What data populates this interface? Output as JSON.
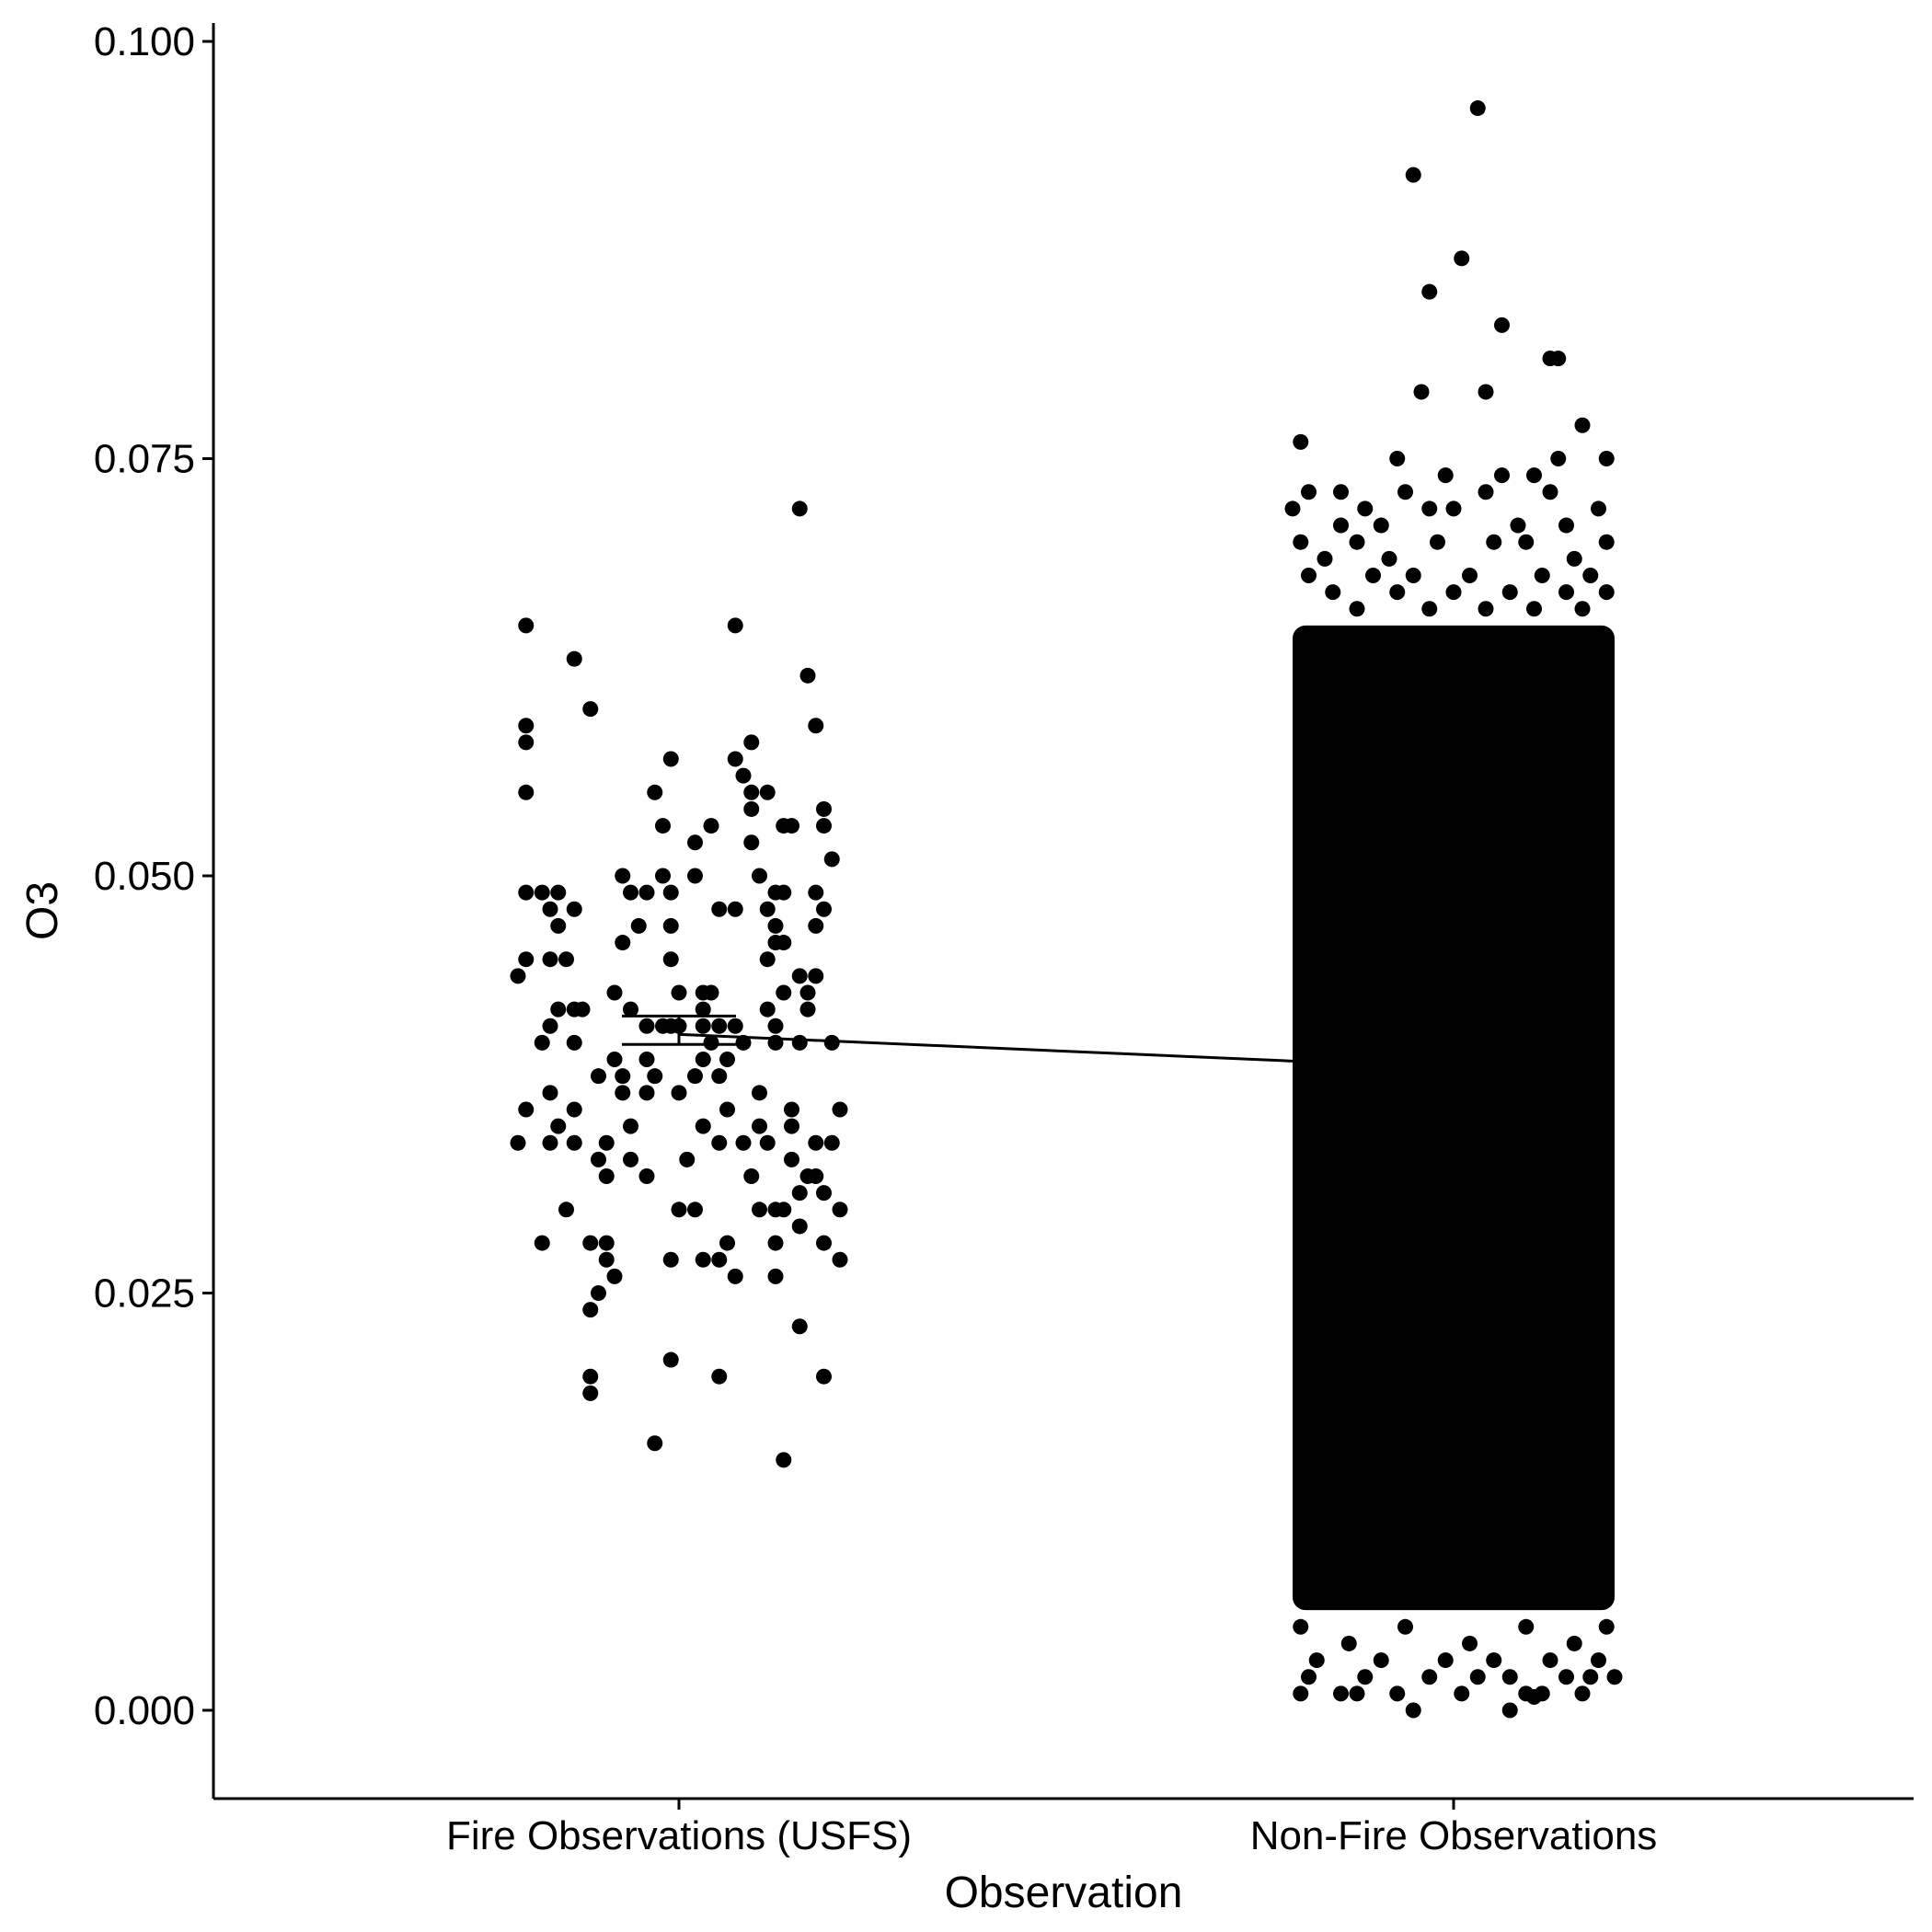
{
  "chart_data": {
    "type": "scatter",
    "title": "",
    "xlabel": "Observation",
    "ylabel": "O3",
    "categories": [
      "Fire Observations (USFS)",
      "Non-Fire Observations"
    ],
    "ylim": [
      -0.003,
      0.101
    ],
    "yticks": [
      "0.000",
      "0.025",
      "0.050",
      "0.075",
      "0.100"
    ],
    "grid": false,
    "legend": "none",
    "colors": {
      "points": "#000000",
      "background": "#ffffff"
    },
    "mean_line": {
      "from": [
        0,
        0.0405
      ],
      "to": [
        1,
        0.0389
      ]
    },
    "error_bar": {
      "category": 0,
      "mean": 0.0405,
      "low": 0.0399,
      "high": 0.0416
    },
    "series": [
      {
        "category": "Fire Observations (USFS)",
        "points": [
          [
            -0.19,
            0.065
          ],
          [
            -0.13,
            0.063
          ],
          [
            -0.11,
            0.06
          ],
          [
            0.07,
            0.065
          ],
          [
            0.16,
            0.062
          ],
          [
            -0.19,
            0.059
          ],
          [
            -0.19,
            0.058
          ],
          [
            -0.19,
            0.055
          ],
          [
            0.17,
            0.059
          ],
          [
            -0.03,
            0.055
          ],
          [
            0.07,
            0.057
          ],
          [
            0.09,
            0.058
          ],
          [
            0.08,
            0.056
          ],
          [
            -0.01,
            0.057
          ],
          [
            0.09,
            0.055
          ],
          [
            0.11,
            0.055
          ],
          [
            0.09,
            0.054
          ],
          [
            0.14,
            0.053
          ],
          [
            0.13,
            0.053
          ],
          [
            0.18,
            0.054
          ],
          [
            0.18,
            0.053
          ],
          [
            -0.02,
            0.053
          ],
          [
            0.04,
            0.053
          ],
          [
            0.02,
            0.052
          ],
          [
            0.09,
            0.052
          ],
          [
            0.19,
            0.051
          ],
          [
            -0.07,
            0.05
          ],
          [
            -0.02,
            0.05
          ],
          [
            0.02,
            0.05
          ],
          [
            0.1,
            0.05
          ],
          [
            -0.19,
            0.049
          ],
          [
            -0.17,
            0.049
          ],
          [
            -0.15,
            0.049
          ],
          [
            -0.06,
            0.049
          ],
          [
            -0.04,
            0.049
          ],
          [
            -0.01,
            0.049
          ],
          [
            0.12,
            0.049
          ],
          [
            0.13,
            0.049
          ],
          [
            0.17,
            0.049
          ],
          [
            -0.16,
            0.048
          ],
          [
            -0.13,
            0.048
          ],
          [
            0.05,
            0.048
          ],
          [
            0.07,
            0.048
          ],
          [
            0.18,
            0.048
          ],
          [
            0.11,
            0.048
          ],
          [
            -0.15,
            0.047
          ],
          [
            -0.05,
            0.047
          ],
          [
            -0.01,
            0.047
          ],
          [
            0.12,
            0.047
          ],
          [
            0.17,
            0.047
          ],
          [
            -0.07,
            0.046
          ],
          [
            0.12,
            0.046
          ],
          [
            0.13,
            0.046
          ],
          [
            -0.19,
            0.045
          ],
          [
            -0.16,
            0.045
          ],
          [
            -0.14,
            0.045
          ],
          [
            -0.01,
            0.045
          ],
          [
            0.11,
            0.045
          ],
          [
            -0.2,
            0.044
          ],
          [
            0.15,
            0.044
          ],
          [
            0.17,
            0.044
          ],
          [
            -0.08,
            0.043
          ],
          [
            0.0,
            0.043
          ],
          [
            0.03,
            0.043
          ],
          [
            0.04,
            0.043
          ],
          [
            0.13,
            0.043
          ],
          [
            0.16,
            0.043
          ],
          [
            -0.15,
            0.042
          ],
          [
            -0.13,
            0.042
          ],
          [
            -0.12,
            0.042
          ],
          [
            -0.06,
            0.042
          ],
          [
            0.03,
            0.042
          ],
          [
            0.11,
            0.042
          ],
          [
            0.16,
            0.042
          ],
          [
            -0.16,
            0.041
          ],
          [
            -0.04,
            0.041
          ],
          [
            -0.02,
            0.041
          ],
          [
            -0.01,
            0.041
          ],
          [
            0.0,
            0.041
          ],
          [
            0.03,
            0.041
          ],
          [
            0.05,
            0.041
          ],
          [
            0.07,
            0.041
          ],
          [
            0.12,
            0.041
          ],
          [
            -0.17,
            0.04
          ],
          [
            -0.13,
            0.04
          ],
          [
            0.04,
            0.04
          ],
          [
            0.08,
            0.04
          ],
          [
            0.12,
            0.04
          ],
          [
            0.15,
            0.04
          ],
          [
            0.19,
            0.04
          ],
          [
            -0.08,
            0.039
          ],
          [
            -0.04,
            0.039
          ],
          [
            0.03,
            0.039
          ],
          [
            0.06,
            0.039
          ],
          [
            -0.1,
            0.038
          ],
          [
            -0.07,
            0.038
          ],
          [
            -0.03,
            0.038
          ],
          [
            0.02,
            0.038
          ],
          [
            0.05,
            0.038
          ],
          [
            -0.16,
            0.037
          ],
          [
            -0.07,
            0.037
          ],
          [
            -0.04,
            0.037
          ],
          [
            0.0,
            0.037
          ],
          [
            0.1,
            0.037
          ],
          [
            -0.19,
            0.036
          ],
          [
            -0.13,
            0.036
          ],
          [
            0.06,
            0.036
          ],
          [
            0.14,
            0.036
          ],
          [
            0.2,
            0.036
          ],
          [
            -0.15,
            0.035
          ],
          [
            -0.06,
            0.035
          ],
          [
            0.03,
            0.035
          ],
          [
            0.1,
            0.035
          ],
          [
            0.14,
            0.035
          ],
          [
            -0.2,
            0.034
          ],
          [
            -0.16,
            0.034
          ],
          [
            -0.13,
            0.034
          ],
          [
            -0.09,
            0.034
          ],
          [
            0.05,
            0.034
          ],
          [
            0.08,
            0.034
          ],
          [
            0.11,
            0.034
          ],
          [
            0.17,
            0.034
          ],
          [
            0.19,
            0.034
          ],
          [
            -0.1,
            0.033
          ],
          [
            -0.06,
            0.033
          ],
          [
            0.01,
            0.033
          ],
          [
            0.14,
            0.033
          ],
          [
            -0.09,
            0.032
          ],
          [
            -0.04,
            0.032
          ],
          [
            0.09,
            0.032
          ],
          [
            0.16,
            0.032
          ],
          [
            0.17,
            0.032
          ],
          [
            0.15,
            0.031
          ],
          [
            0.18,
            0.031
          ],
          [
            -0.14,
            0.03
          ],
          [
            0.0,
            0.03
          ],
          [
            0.02,
            0.03
          ],
          [
            0.1,
            0.03
          ],
          [
            0.12,
            0.03
          ],
          [
            0.13,
            0.03
          ],
          [
            0.2,
            0.03
          ],
          [
            0.15,
            0.029
          ],
          [
            -0.17,
            0.028
          ],
          [
            -0.11,
            0.028
          ],
          [
            -0.09,
            0.028
          ],
          [
            0.06,
            0.028
          ],
          [
            0.12,
            0.028
          ],
          [
            0.18,
            0.028
          ],
          [
            -0.09,
            0.027
          ],
          [
            -0.01,
            0.027
          ],
          [
            0.03,
            0.027
          ],
          [
            0.05,
            0.027
          ],
          [
            0.2,
            0.027
          ],
          [
            -0.08,
            0.026
          ],
          [
            0.07,
            0.026
          ],
          [
            0.12,
            0.026
          ],
          [
            -0.1,
            0.025
          ],
          [
            -0.11,
            0.024
          ],
          [
            0.15,
            0.023
          ],
          [
            -0.11,
            0.02
          ],
          [
            -0.11,
            0.019
          ],
          [
            -0.01,
            0.021
          ],
          [
            0.05,
            0.02
          ],
          [
            0.18,
            0.02
          ],
          [
            -0.03,
            0.016
          ],
          [
            0.13,
            0.015
          ],
          [
            0.15,
            0.072
          ]
        ]
      },
      {
        "category": "Non-Fire Observations",
        "dense_band": {
          "x_min": -0.2,
          "x_max": 0.2,
          "y_min": 0.006,
          "y_max": 0.065
        },
        "points": [
          [
            0.03,
            0.096
          ],
          [
            -0.05,
            0.092
          ],
          [
            0.01,
            0.087
          ],
          [
            -0.03,
            0.085
          ],
          [
            0.06,
            0.083
          ],
          [
            0.12,
            0.081
          ],
          [
            0.13,
            0.081
          ],
          [
            -0.04,
            0.079
          ],
          [
            0.04,
            0.079
          ],
          [
            0.16,
            0.077
          ],
          [
            -0.19,
            0.076
          ],
          [
            -0.07,
            0.075
          ],
          [
            -0.01,
            0.074
          ],
          [
            0.06,
            0.074
          ],
          [
            0.13,
            0.075
          ],
          [
            0.19,
            0.075
          ],
          [
            -0.2,
            0.072
          ],
          [
            -0.18,
            0.073
          ],
          [
            -0.14,
            0.073
          ],
          [
            -0.06,
            0.073
          ],
          [
            0.04,
            0.073
          ],
          [
            0.1,
            0.074
          ],
          [
            0.12,
            0.073
          ],
          [
            -0.14,
            0.071
          ],
          [
            -0.11,
            0.072
          ],
          [
            -0.09,
            0.071
          ],
          [
            -0.03,
            0.072
          ],
          [
            0.0,
            0.072
          ],
          [
            0.08,
            0.071
          ],
          [
            0.14,
            0.071
          ],
          [
            0.18,
            0.072
          ],
          [
            -0.19,
            0.07
          ],
          [
            -0.16,
            0.069
          ],
          [
            -0.12,
            0.07
          ],
          [
            -0.08,
            0.069
          ],
          [
            -0.02,
            0.07
          ],
          [
            0.05,
            0.07
          ],
          [
            0.09,
            0.07
          ],
          [
            0.15,
            0.069
          ],
          [
            0.19,
            0.07
          ],
          [
            -0.18,
            0.068
          ],
          [
            -0.1,
            0.068
          ],
          [
            -0.05,
            0.068
          ],
          [
            0.02,
            0.068
          ],
          [
            0.11,
            0.068
          ],
          [
            0.17,
            0.068
          ],
          [
            -0.15,
            0.067
          ],
          [
            -0.07,
            0.067
          ],
          [
            0.0,
            0.067
          ],
          [
            0.07,
            0.067
          ],
          [
            0.14,
            0.067
          ],
          [
            0.19,
            0.067
          ],
          [
            -0.12,
            0.066
          ],
          [
            -0.03,
            0.066
          ],
          [
            0.04,
            0.066
          ],
          [
            0.1,
            0.066
          ],
          [
            0.16,
            0.066
          ],
          [
            -0.19,
            0.005
          ],
          [
            -0.13,
            0.004
          ],
          [
            -0.06,
            0.005
          ],
          [
            0.02,
            0.004
          ],
          [
            0.09,
            0.005
          ],
          [
            0.15,
            0.004
          ],
          [
            0.19,
            0.005
          ],
          [
            -0.17,
            0.003
          ],
          [
            -0.09,
            0.003
          ],
          [
            -0.01,
            0.003
          ],
          [
            0.05,
            0.003
          ],
          [
            0.12,
            0.003
          ],
          [
            0.18,
            0.003
          ],
          [
            -0.18,
            0.002
          ],
          [
            -0.14,
            0.001
          ],
          [
            -0.11,
            0.002
          ],
          [
            -0.07,
            0.001
          ],
          [
            -0.03,
            0.002
          ],
          [
            -0.05,
            0.0
          ],
          [
            0.01,
            0.001
          ],
          [
            0.03,
            0.002
          ],
          [
            0.07,
            0.002
          ],
          [
            0.11,
            0.001
          ],
          [
            0.14,
            0.002
          ],
          [
            0.17,
            0.002
          ],
          [
            0.2,
            0.002
          ],
          [
            0.07,
            0.0
          ],
          [
            0.1,
            0.0008
          ],
          [
            -0.19,
            0.001
          ],
          [
            -0.12,
            0.001
          ],
          [
            0.09,
            0.001
          ],
          [
            0.16,
            0.001
          ]
        ]
      }
    ]
  }
}
